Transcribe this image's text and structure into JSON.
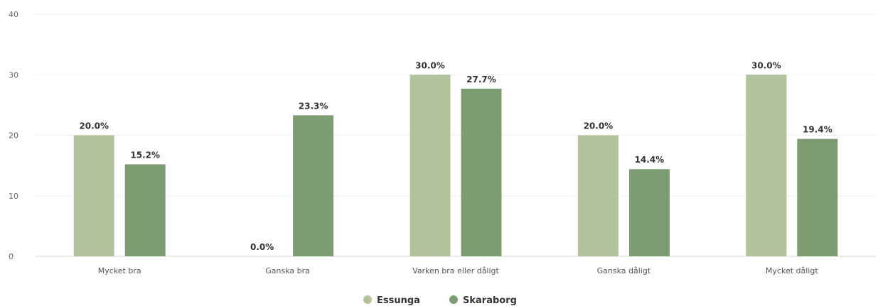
{
  "chart_data": {
    "type": "bar",
    "categories": [
      "Mycket bra",
      "Ganska bra",
      "Varken bra eller dåligt",
      "Ganska dåligt",
      "Mycket dåligt"
    ],
    "series": [
      {
        "name": "Essunga",
        "values": [
          20.0,
          0.0,
          30.0,
          20.0,
          30.0
        ],
        "labels": [
          "20.0%",
          "0.0%",
          "30.0%",
          "20.0%",
          "30.0%"
        ],
        "color": "#b2c29a"
      },
      {
        "name": "Skaraborg",
        "values": [
          15.2,
          23.3,
          27.7,
          14.4,
          19.4
        ],
        "labels": [
          "15.2%",
          "23.3%",
          "27.7%",
          "14.4%",
          "19.4%"
        ],
        "color": "#7e9c72"
      }
    ],
    "yticks": [
      "0",
      "10",
      "20",
      "30",
      "40"
    ],
    "ylim": [
      0,
      40
    ],
    "grid": true,
    "legend_position": "bottom-center"
  }
}
